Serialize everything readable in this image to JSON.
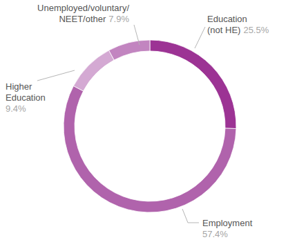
{
  "chart_data": {
    "type": "donut",
    "categories": [
      "Education (not HE)",
      "Employment",
      "Higher Education",
      "Unemployed/voluntary/NEET/other"
    ],
    "values": [
      25.5,
      57.4,
      9.4,
      7.9
    ],
    "value_labels": [
      "25.5%",
      "57.4%",
      "9.4%",
      "7.9%"
    ],
    "colors": [
      "#9c3394",
      "#b063ac",
      "#d4a9d3",
      "#c285c0"
    ],
    "data_labels": true
  }
}
